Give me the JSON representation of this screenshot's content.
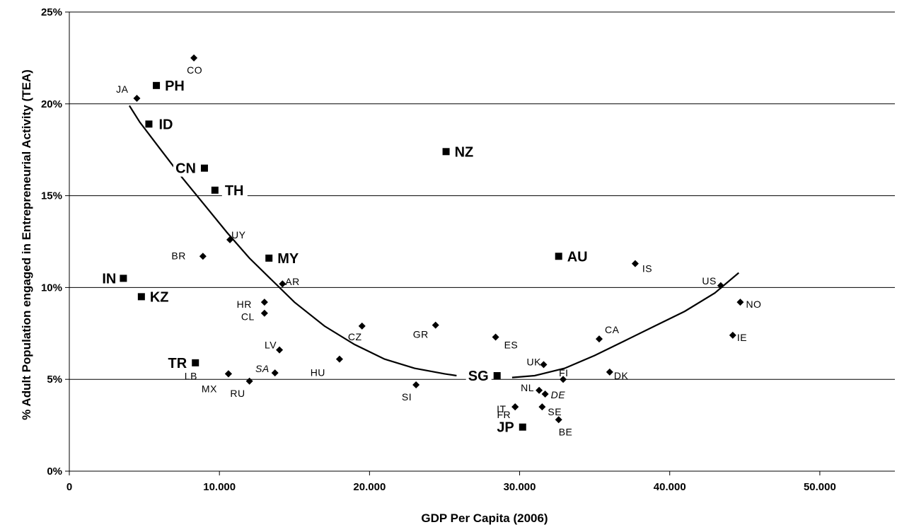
{
  "chart_data": {
    "type": "scatter",
    "xlabel": "GDP Per Capita (2006)",
    "ylabel": "% Adult Population engaged in Entrepreneurial Activity (TEA)",
    "xlim": [
      0,
      55000
    ],
    "ylim": [
      0,
      25
    ],
    "x_ticks": [
      {
        "value": 0,
        "label": "0"
      },
      {
        "value": 10000,
        "label": "10.000"
      },
      {
        "value": 20000,
        "label": "20.000"
      },
      {
        "value": 30000,
        "label": "30.000"
      },
      {
        "value": 40000,
        "label": "40.000"
      },
      {
        "value": 50000,
        "label": "50.000"
      }
    ],
    "y_ticks": [
      {
        "value": 0,
        "label": "0%"
      },
      {
        "value": 5,
        "label": "5%"
      },
      {
        "value": 10,
        "label": "10%"
      },
      {
        "value": 15,
        "label": "15%"
      },
      {
        "value": 20,
        "label": "20%"
      },
      {
        "value": 25,
        "label": "25%"
      }
    ],
    "grid": "horizontal",
    "series": [
      {
        "marker": "diamond",
        "points": [
          {
            "label": "CO",
            "x": 8300,
            "y": 22.5
          },
          {
            "label": "JA",
            "x": 4500,
            "y": 20.3
          },
          {
            "label": "UY",
            "x": 10700,
            "y": 12.6
          },
          {
            "label": "BR",
            "x": 8900,
            "y": 11.7
          },
          {
            "label": "AR",
            "x": 14200,
            "y": 10.2
          },
          {
            "label": "HR",
            "x": 13000,
            "y": 9.2
          },
          {
            "label": "CL",
            "x": 13000,
            "y": 8.6
          },
          {
            "label": "LV",
            "x": 14000,
            "y": 6.6
          },
          {
            "label": "CZ",
            "x": 19500,
            "y": 7.9
          },
          {
            "label": "HU",
            "x": 18000,
            "y": 6.1
          },
          {
            "label": "SA",
            "x": 13700,
            "y": 5.35,
            "italic": true
          },
          {
            "label": "LB",
            "x": 10600,
            "y": 5.3
          },
          {
            "label": "MX",
            "x": 10600,
            "y": 5.3
          },
          {
            "label": "RU",
            "x": 12000,
            "y": 4.9
          },
          {
            "label": "GR",
            "x": 24400,
            "y": 7.95
          },
          {
            "label": "SI",
            "x": 23100,
            "y": 4.7
          },
          {
            "label": "ES",
            "x": 28400,
            "y": 7.3
          },
          {
            "label": "UK",
            "x": 31600,
            "y": 5.8
          },
          {
            "label": "FI",
            "x": 32900,
            "y": 5.0
          },
          {
            "label": "NL",
            "x": 31300,
            "y": 4.4
          },
          {
            "label": "DE",
            "x": 31700,
            "y": 4.2,
            "italic": true
          },
          {
            "label": "FR",
            "x": 29700,
            "y": 3.5
          },
          {
            "label": "IT",
            "x": 29700,
            "y": 3.5
          },
          {
            "label": "SE",
            "x": 31500,
            "y": 3.5
          },
          {
            "label": "BE",
            "x": 32600,
            "y": 2.8
          },
          {
            "label": "CA",
            "x": 35300,
            "y": 7.2
          },
          {
            "label": "DK",
            "x": 36000,
            "y": 5.4
          },
          {
            "label": "IS",
            "x": 37700,
            "y": 11.3
          },
          {
            "label": "US",
            "x": 43400,
            "y": 10.1
          },
          {
            "label": "NO",
            "x": 44700,
            "y": 9.2
          },
          {
            "label": "IE",
            "x": 44200,
            "y": 7.4
          }
        ]
      },
      {
        "marker": "square",
        "points": [
          {
            "label": "PH",
            "x": 5800,
            "y": 21.0
          },
          {
            "label": "ID",
            "x": 5300,
            "y": 18.9
          },
          {
            "label": "CN",
            "x": 9000,
            "y": 16.5
          },
          {
            "label": "TH",
            "x": 9700,
            "y": 15.3
          },
          {
            "label": "NZ",
            "x": 25100,
            "y": 17.4
          },
          {
            "label": "MY",
            "x": 13300,
            "y": 11.6
          },
          {
            "label": "AU",
            "x": 32600,
            "y": 11.7
          },
          {
            "label": "IN",
            "x": 3600,
            "y": 10.5
          },
          {
            "label": "KZ",
            "x": 4800,
            "y": 9.5
          },
          {
            "label": "TR",
            "x": 8400,
            "y": 5.9
          },
          {
            "label": "SG",
            "x": 28500,
            "y": 5.2
          },
          {
            "label": "JP",
            "x": 30200,
            "y": 2.4
          }
        ]
      }
    ],
    "trendlines": [
      {
        "style": "solid",
        "points": [
          [
            4000,
            19.9
          ],
          [
            4700,
            19.0
          ],
          [
            6000,
            17.6
          ],
          [
            7500,
            16.0
          ],
          [
            9000,
            14.5
          ],
          [
            10500,
            13.0
          ],
          [
            12000,
            11.6
          ],
          [
            13500,
            10.4
          ],
          [
            15000,
            9.2
          ],
          [
            17000,
            7.9
          ],
          [
            19000,
            6.9
          ],
          [
            21000,
            6.1
          ],
          [
            23000,
            5.6
          ],
          [
            25000,
            5.3
          ],
          [
            25800,
            5.2
          ]
        ]
      },
      {
        "style": "solid",
        "points": [
          [
            29500,
            5.1
          ],
          [
            31000,
            5.2
          ],
          [
            33000,
            5.6
          ],
          [
            35000,
            6.3
          ],
          [
            37000,
            7.1
          ],
          [
            39000,
            7.9
          ],
          [
            41000,
            8.7
          ],
          [
            43000,
            9.7
          ],
          [
            44600,
            10.8
          ]
        ]
      }
    ]
  }
}
